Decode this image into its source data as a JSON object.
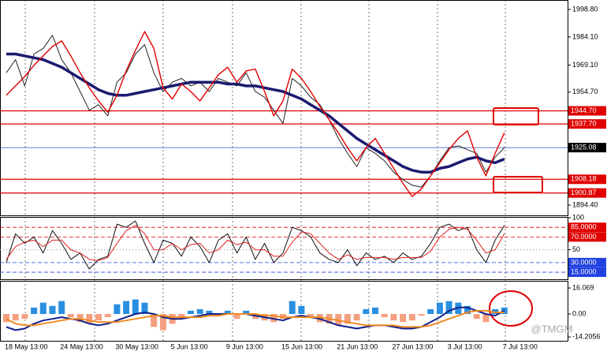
{
  "chart_data": [
    {
      "type": "line",
      "ylim": [
        1889.35,
        2003.0
      ],
      "yticks": [
        {
          "value": 1998.8,
          "label": "1998.80"
        },
        {
          "value": 1984.1,
          "label": "1984.10"
        },
        {
          "value": 1969.1,
          "label": "1969.10"
        },
        {
          "value": 1954.7,
          "label": "1954.70"
        },
        {
          "value": 1894.4,
          "label": "1894.40"
        }
      ],
      "levels": [
        {
          "value": 1944.7,
          "label": "1944.70",
          "color": "#e00000"
        },
        {
          "value": 1937.7,
          "label": "1937.70",
          "color": "#e00000"
        },
        {
          "value": 1908.18,
          "label": "1908.18",
          "color": "#e00000"
        },
        {
          "value": 1900.87,
          "label": "1900.87",
          "color": "#e00000"
        }
      ],
      "current_price": 1925.08,
      "series": [
        {
          "color": "#222222",
          "width": 1,
          "values": [
            1965,
            1972,
            1958,
            1975,
            1978,
            1985,
            1972,
            1965,
            1955,
            1945,
            1948,
            1942,
            1960,
            1965,
            1975,
            1980,
            1965,
            1955,
            1960,
            1962,
            1958,
            1960,
            1955,
            1962,
            1960,
            1958,
            1965,
            1955,
            1952,
            1945,
            1938,
            1962,
            1958,
            1952,
            1948,
            1940,
            1930,
            1922,
            1915,
            1925,
            1922,
            1918,
            1912,
            1908,
            1905,
            1904,
            1910,
            1918,
            1925,
            1926,
            1924,
            1922,
            1912,
            1920,
            1925
          ]
        },
        {
          "color": "#1b1b70",
          "width": 3.5,
          "values": [
            1975,
            1975,
            1974,
            1973,
            1972,
            1970,
            1968,
            1965,
            1962,
            1959,
            1956,
            1954,
            1953,
            1953,
            1954,
            1955,
            1956,
            1957,
            1958,
            1959,
            1960,
            1960,
            1960,
            1960,
            1959,
            1959,
            1958,
            1958,
            1957,
            1956,
            1955,
            1953,
            1951,
            1948,
            1945,
            1942,
            1938,
            1934,
            1930,
            1927,
            1924,
            1921,
            1918,
            1915,
            1913,
            1912,
            1912,
            1914,
            1915,
            1917,
            1919,
            1920,
            1918,
            1917,
            1919
          ]
        },
        {
          "color": "#e00000",
          "width": 1.4,
          "values": [
            1953,
            1958,
            1963,
            1969,
            1974,
            1979,
            1982,
            1974,
            1965,
            1957,
            1950,
            1944,
            1953,
            1966,
            1977,
            1987,
            1978,
            1957,
            1951,
            1959,
            1955,
            1950,
            1957,
            1964,
            1968,
            1960,
            1966,
            1967,
            1955,
            1942,
            1950,
            1967,
            1962,
            1955,
            1947,
            1940,
            1933,
            1925,
            1918,
            1925,
            1930,
            1922,
            1914,
            1906,
            1899,
            1903,
            1910,
            1917,
            1924,
            1930,
            1934,
            1920,
            1910,
            1922,
            1933
          ]
        }
      ]
    },
    {
      "type": "line",
      "ylim": [
        4,
        100
      ],
      "yticks": [
        100,
        50
      ],
      "levels": [
        {
          "value": 85,
          "label": "85.0000",
          "color": "#e00000"
        },
        {
          "value": 70,
          "label": "70.0000",
          "color": "#e00000"
        },
        {
          "value": 30,
          "label": "30.0000",
          "color": "#2040e0"
        },
        {
          "value": 15,
          "label": "15.0000",
          "color": "#2040e0"
        }
      ],
      "series": [
        {
          "color": "#111111",
          "width": 1,
          "values": [
            30,
            75,
            60,
            70,
            45,
            80,
            60,
            35,
            45,
            20,
            35,
            40,
            90,
            85,
            95,
            60,
            30,
            65,
            60,
            40,
            70,
            55,
            30,
            65,
            75,
            45,
            70,
            35,
            60,
            30,
            45,
            85,
            80,
            70,
            45,
            35,
            30,
            50,
            25,
            45,
            35,
            40,
            30,
            45,
            35,
            40,
            60,
            85,
            90,
            80,
            85,
            50,
            30,
            65,
            88
          ]
        },
        {
          "color": "#e02020",
          "width": 1,
          "values": [
            35,
            55,
            62,
            65,
            55,
            65,
            65,
            50,
            45,
            35,
            33,
            38,
            60,
            80,
            88,
            75,
            50,
            50,
            60,
            50,
            58,
            60,
            45,
            50,
            65,
            58,
            62,
            50,
            50,
            40,
            40,
            62,
            78,
            75,
            60,
            45,
            35,
            42,
            35,
            38,
            38,
            38,
            35,
            38,
            38,
            38,
            48,
            70,
            82,
            85,
            82,
            65,
            45,
            50,
            75
          ]
        }
      ]
    },
    {
      "type": "bar",
      "ylim": [
        -16.07,
        20
      ],
      "yticks": [
        16.069,
        {
          "value": 0,
          "label": "0.00"
        },
        -14.2056
      ],
      "up_color": "#2a8fe0",
      "down_color": "#f4a080",
      "values": [
        -5,
        -4,
        -3,
        4,
        7,
        5,
        8,
        -2,
        -5,
        -6,
        -4,
        -2,
        6,
        8,
        9,
        7,
        -8,
        -10,
        -6,
        -3,
        2,
        3,
        2,
        -1,
        2,
        -3,
        2,
        -3,
        -4,
        -5,
        -3,
        8,
        5,
        -2,
        -5,
        -6,
        -7,
        -6,
        -4,
        3,
        4,
        -2,
        -4,
        -5,
        -4,
        -1,
        3,
        7,
        8,
        7,
        5,
        -3,
        -5,
        3,
        4
      ],
      "series": [
        {
          "color": "#10208a",
          "width": 2,
          "values": [
            -8,
            -10,
            -9,
            -6,
            -4,
            -3,
            -2,
            -3,
            -4,
            -6,
            -7,
            -6,
            -4,
            -2,
            0,
            1,
            0,
            -2,
            -3,
            -3,
            -2,
            -1,
            0,
            0,
            0,
            0,
            0,
            -1,
            -2,
            -3,
            -4,
            -2,
            -1,
            -2,
            -3,
            -5,
            -7,
            -8,
            -9,
            -8,
            -7,
            -7,
            -8,
            -9,
            -9,
            -8,
            -5,
            -2,
            2,
            4,
            4,
            2,
            0,
            -1,
            2
          ]
        },
        {
          "color": "#f08a20",
          "width": 2,
          "values": [
            -3,
            -6,
            -7,
            -7,
            -6,
            -5,
            -4,
            -3,
            -3,
            -4,
            -5,
            -5,
            -5,
            -4,
            -3,
            -2,
            -1,
            -1,
            -2,
            -2,
            -2,
            -2,
            -1,
            -1,
            0,
            0,
            0,
            0,
            -1,
            -1,
            -2,
            -2,
            -2,
            -2,
            -2,
            -3,
            -4,
            -5,
            -6,
            -7,
            -7,
            -7,
            -7,
            -8,
            -8,
            -8,
            -7,
            -5,
            -3,
            -1,
            1,
            2,
            2,
            1,
            1
          ]
        }
      ],
      "categories": [
        "18 May 13:00",
        null,
        null,
        null,
        null,
        null,
        "24 May 13:00",
        null,
        null,
        null,
        null,
        null,
        "30 May 13:00",
        null,
        null,
        null,
        null,
        null,
        "5 Jun 13:00",
        null,
        null,
        null,
        null,
        null,
        "9 Jun 13:00",
        null,
        null,
        null,
        null,
        null,
        "15 Jun 13:00",
        null,
        null,
        null,
        null,
        null,
        "21 Jun 13:00",
        null,
        null,
        null,
        null,
        null,
        "27 Jun 13:00",
        null,
        null,
        null,
        null,
        null,
        "3 Jul 13:00",
        null,
        null,
        null,
        null,
        null,
        "7 Jul 13:00"
      ],
      "watermark": "@TMGM"
    }
  ]
}
